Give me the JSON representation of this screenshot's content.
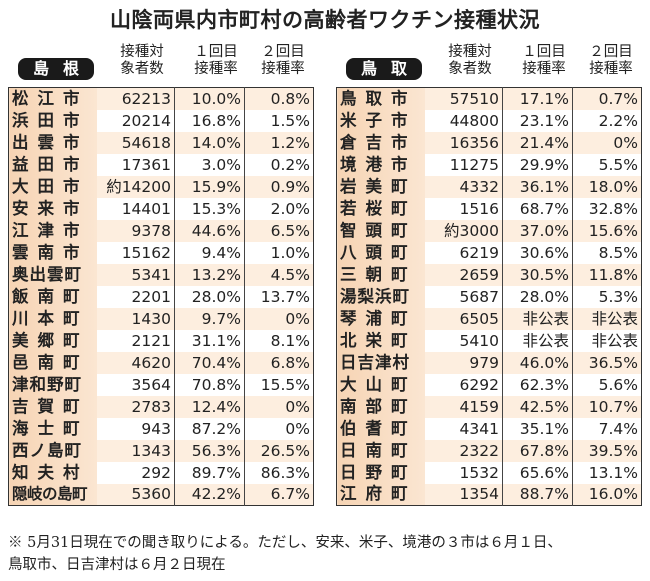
{
  "title": "山陰両県内市町村の高齢者ワクチン接種状況",
  "headers": {
    "count": [
      "接種対",
      "象者数"
    ],
    "first": [
      "１回目",
      "接種率"
    ],
    "second": [
      "２回目",
      "接種率"
    ]
  },
  "shimane": {
    "label": "島根",
    "rows": [
      {
        "name": "松江市",
        "count": "62213",
        "first": "10.0%",
        "second": "0.8%"
      },
      {
        "name": "浜田市",
        "count": "20214",
        "first": "16.8%",
        "second": "1.5%"
      },
      {
        "name": "出雲市",
        "count": "54618",
        "first": "14.0%",
        "second": "1.2%"
      },
      {
        "name": "益田市",
        "count": "17361",
        "first": "3.0%",
        "second": "0.2%"
      },
      {
        "name": "大田市",
        "count": "約14200",
        "first": "15.9%",
        "second": "0.9%"
      },
      {
        "name": "安来市",
        "count": "14401",
        "first": "15.3%",
        "second": "2.0%"
      },
      {
        "name": "江津市",
        "count": "9378",
        "first": "44.6%",
        "second": "6.5%"
      },
      {
        "name": "雲南市",
        "count": "15162",
        "first": "9.4%",
        "second": "1.0%"
      },
      {
        "name": "奥出雲町",
        "count": "5341",
        "first": "13.2%",
        "second": "4.5%"
      },
      {
        "name": "飯南町",
        "count": "2201",
        "first": "28.0%",
        "second": "13.7%"
      },
      {
        "name": "川本町",
        "count": "1430",
        "first": "9.7%",
        "second": "0%"
      },
      {
        "name": "美郷町",
        "count": "2121",
        "first": "31.1%",
        "second": "8.1%"
      },
      {
        "name": "邑南町",
        "count": "4620",
        "first": "70.4%",
        "second": "6.8%"
      },
      {
        "name": "津和野町",
        "count": "3564",
        "first": "70.8%",
        "second": "15.5%"
      },
      {
        "name": "吉賀町",
        "count": "2783",
        "first": "12.4%",
        "second": "0%"
      },
      {
        "name": "海士町",
        "count": "943",
        "first": "87.2%",
        "second": "0%"
      },
      {
        "name": "西ノ島町",
        "count": "1343",
        "first": "56.3%",
        "second": "26.5%"
      },
      {
        "name": "知夫村",
        "count": "292",
        "first": "89.7%",
        "second": "86.3%"
      },
      {
        "name": "隠岐の島町",
        "count": "5360",
        "first": "42.2%",
        "second": "6.7%"
      }
    ]
  },
  "tottori": {
    "label": "鳥取",
    "rows": [
      {
        "name": "鳥取市",
        "count": "57510",
        "first": "17.1%",
        "second": "0.7%"
      },
      {
        "name": "米子市",
        "count": "44800",
        "first": "23.1%",
        "second": "2.2%"
      },
      {
        "name": "倉吉市",
        "count": "16356",
        "first": "21.4%",
        "second": "0%"
      },
      {
        "name": "境港市",
        "count": "11275",
        "first": "29.9%",
        "second": "5.5%"
      },
      {
        "name": "岩美町",
        "count": "4332",
        "first": "36.1%",
        "second": "18.0%"
      },
      {
        "name": "若桜町",
        "count": "1516",
        "first": "68.7%",
        "second": "32.8%"
      },
      {
        "name": "智頭町",
        "count": "約3000",
        "first": "37.0%",
        "second": "15.6%"
      },
      {
        "name": "八頭町",
        "count": "6219",
        "first": "30.6%",
        "second": "8.5%"
      },
      {
        "name": "三朝町",
        "count": "2659",
        "first": "30.5%",
        "second": "11.8%"
      },
      {
        "name": "湯梨浜町",
        "count": "5687",
        "first": "28.0%",
        "second": "5.3%"
      },
      {
        "name": "琴浦町",
        "count": "6505",
        "first": "非公表",
        "second": "非公表"
      },
      {
        "name": "北栄町",
        "count": "5410",
        "first": "非公表",
        "second": "非公表"
      },
      {
        "name": "日吉津村",
        "count": "979",
        "first": "46.0%",
        "second": "36.5%"
      },
      {
        "name": "大山町",
        "count": "6292",
        "first": "62.3%",
        "second": "5.6%"
      },
      {
        "name": "南部町",
        "count": "4159",
        "first": "42.5%",
        "second": "10.7%"
      },
      {
        "name": "伯耆町",
        "count": "4341",
        "first": "35.1%",
        "second": "7.4%"
      },
      {
        "name": "日南町",
        "count": "2322",
        "first": "67.8%",
        "second": "39.5%"
      },
      {
        "name": "日野町",
        "count": "1532",
        "first": "65.6%",
        "second": "13.1%"
      },
      {
        "name": "江府町",
        "count": "1354",
        "first": "88.7%",
        "second": "16.0%"
      }
    ]
  },
  "note": [
    "※ 5月31日現在での聞き取りによる。ただし、安来、米子、境港の３市は６月１日、",
    "鳥取市、日吉津村は６月２日現在"
  ]
}
